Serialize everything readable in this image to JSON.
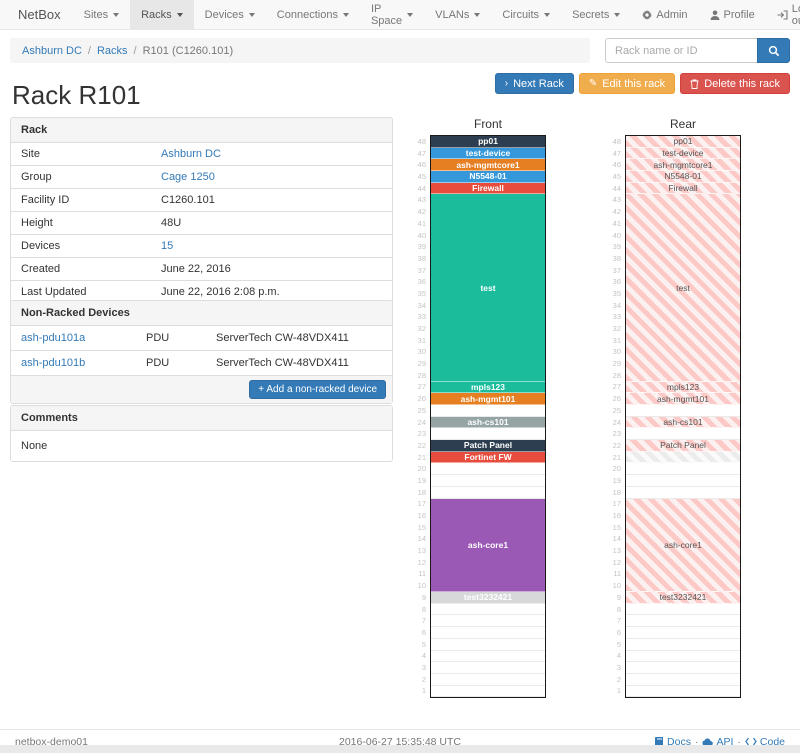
{
  "navbar": {
    "brand": "NetBox",
    "items": [
      "Sites",
      "Racks",
      "Devices",
      "Connections",
      "IP Space",
      "VLANs",
      "Circuits",
      "Secrets"
    ],
    "active_item": "Racks",
    "right_items": [
      {
        "icon": "gear-icon",
        "label": "Admin"
      },
      {
        "icon": "user-icon",
        "label": "Profile"
      },
      {
        "icon": "logout-icon",
        "label": "Log out"
      }
    ]
  },
  "breadcrumb": {
    "items": [
      {
        "label": "Ashburn DC",
        "link": true
      },
      {
        "label": "Racks",
        "link": true
      },
      {
        "label": "R101 (C1260.101)",
        "link": false
      }
    ]
  },
  "search": {
    "placeholder": "Rack name or ID"
  },
  "actions": {
    "next_label": "Next Rack",
    "edit_label": "Edit this rack",
    "delete_label": "Delete this rack"
  },
  "page_title": "Rack R101",
  "rack_panel": {
    "title": "Rack",
    "rows": [
      {
        "label": "Site",
        "value": "Ashburn DC",
        "link": true
      },
      {
        "label": "Group",
        "value": "Cage 1250",
        "link": true
      },
      {
        "label": "Facility ID",
        "value": "C1260.101",
        "link": false
      },
      {
        "label": "Height",
        "value": "48U",
        "link": false
      },
      {
        "label": "Devices",
        "value": "15",
        "link": true
      },
      {
        "label": "Created",
        "value": "June 22, 2016",
        "link": false
      },
      {
        "label": "Last Updated",
        "value": "June 22, 2016 2:08 p.m.",
        "link": false
      }
    ]
  },
  "non_racked": {
    "title": "Non-Racked Devices",
    "rows": [
      {
        "name": "ash-pdu101a",
        "role": "PDU",
        "type": "ServerTech CW-48VDX411"
      },
      {
        "name": "ash-pdu101b",
        "role": "PDU",
        "type": "ServerTech CW-48VDX411"
      }
    ],
    "add_button": "Add a non-racked device"
  },
  "comments": {
    "title": "Comments",
    "body": "None"
  },
  "elevation": {
    "front_title": "Front",
    "rear_title": "Rear",
    "total_units": 48,
    "units": [
      {
        "u": 48,
        "size": 1,
        "label": "pp01",
        "color": "#2c3e50",
        "rear": "hatch"
      },
      {
        "u": 47,
        "size": 1,
        "label": "test-device",
        "color": "#3498db",
        "rear": "hatch"
      },
      {
        "u": 46,
        "size": 1,
        "label": "ash-mgmtcore1",
        "color": "#e67e22",
        "rear": "hatch"
      },
      {
        "u": 45,
        "size": 1,
        "label": "N5548-01",
        "color": "#3498db",
        "rear": "hatch"
      },
      {
        "u": 44,
        "size": 1,
        "label": "Firewall",
        "color": "#e74c3c",
        "rear": "hatch"
      },
      {
        "u": 43,
        "size": 16,
        "label": "test",
        "color": "#1abc9c",
        "rear": "hatch"
      },
      {
        "u": 27,
        "size": 1,
        "label": "mpls123",
        "color": "#1abc9c",
        "rear": "hatch"
      },
      {
        "u": 26,
        "size": 1,
        "label": "ash-mgmt101",
        "color": "#e67e22",
        "rear": "hatch"
      },
      {
        "u": 25,
        "size": 1,
        "label": "",
        "color": null,
        "rear": "empty"
      },
      {
        "u": 24,
        "size": 1,
        "label": "ash-cs101",
        "color": "#95a5a6",
        "rear": "hatch"
      },
      {
        "u": 23,
        "size": 1,
        "label": "",
        "color": null,
        "rear": "empty"
      },
      {
        "u": 22,
        "size": 1,
        "label": "Patch Panel",
        "color": "#2c3e50",
        "rear": "hatch"
      },
      {
        "u": 21,
        "size": 1,
        "label": "Fortinet FW",
        "color": "#e74c3c",
        "rear": "muted"
      },
      {
        "u": 20,
        "size": 1,
        "label": "",
        "color": null,
        "rear": "empty"
      },
      {
        "u": 19,
        "size": 1,
        "label": "",
        "color": null,
        "rear": "empty"
      },
      {
        "u": 18,
        "size": 1,
        "label": "",
        "color": null,
        "rear": "empty"
      },
      {
        "u": 17,
        "size": 8,
        "label": "ash-core1",
        "color": "#9b59b6",
        "rear": "hatch"
      },
      {
        "u": 9,
        "size": 1,
        "label": "test3232421",
        "color": "#d6d8d9",
        "rear": "hatch"
      },
      {
        "u": 8,
        "size": 1,
        "label": "",
        "color": null,
        "rear": "empty"
      },
      {
        "u": 7,
        "size": 1,
        "label": "",
        "color": null,
        "rear": "empty"
      },
      {
        "u": 6,
        "size": 1,
        "label": "",
        "color": null,
        "rear": "empty"
      },
      {
        "u": 5,
        "size": 1,
        "label": "",
        "color": null,
        "rear": "empty"
      },
      {
        "u": 4,
        "size": 1,
        "label": "",
        "color": null,
        "rear": "empty"
      },
      {
        "u": 3,
        "size": 1,
        "label": "",
        "color": null,
        "rear": "empty"
      },
      {
        "u": 2,
        "size": 1,
        "label": "",
        "color": null,
        "rear": "empty"
      },
      {
        "u": 1,
        "size": 1,
        "label": "",
        "color": null,
        "rear": "empty"
      }
    ]
  },
  "footer": {
    "hostname": "netbox-demo01",
    "timestamp": "2016-06-27 15:35:48 UTC",
    "links": [
      {
        "icon": "docs-icon",
        "label": "Docs"
      },
      {
        "icon": "cloud-icon",
        "label": "API"
      },
      {
        "icon": "code-icon",
        "label": "Code"
      }
    ]
  },
  "colors": {
    "link": "#337ab7",
    "primary": "#337ab7",
    "warning": "#f0ad4e",
    "danger": "#d9534f",
    "rear_hatch_pink": "#fcc9c6",
    "navbar_bg": "#f8f8f8"
  }
}
